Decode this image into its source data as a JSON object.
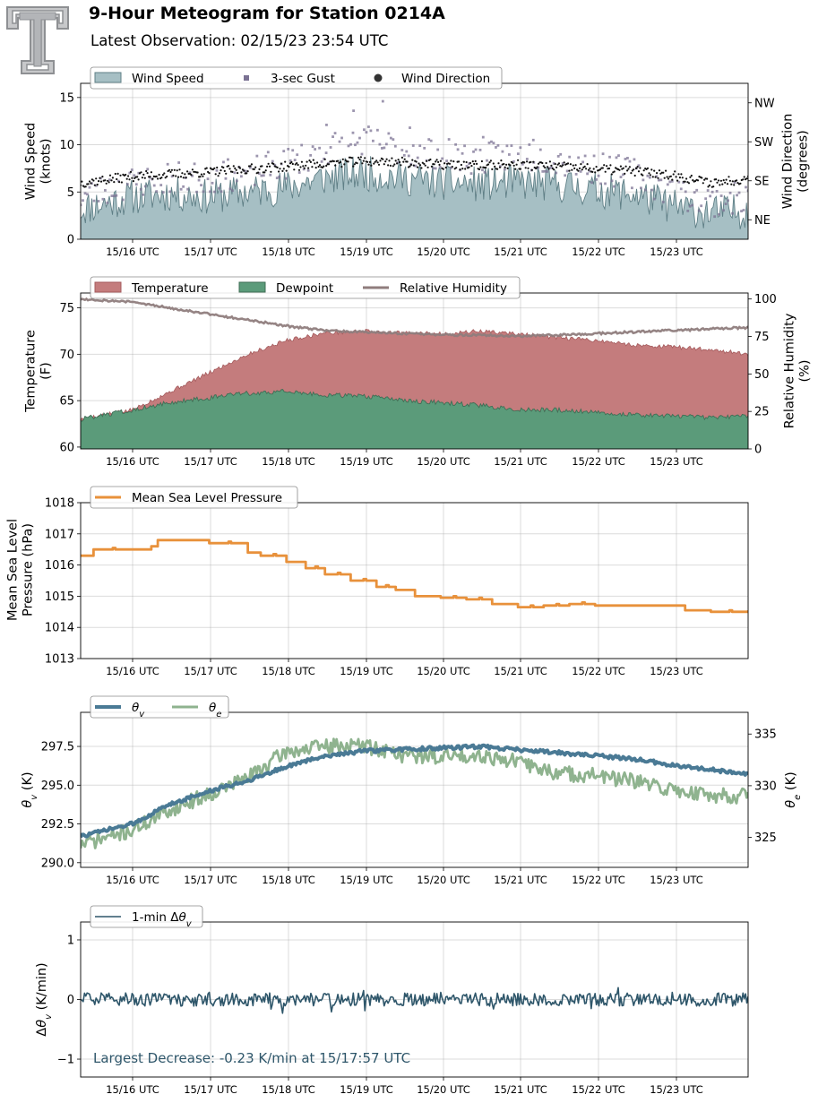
{
  "header": {
    "title": "9-Hour Meteogram for Station 0214A",
    "subtitle": "Latest Observation: 02/15/23 23:54 UTC"
  },
  "logo": {
    "icon": "texas-tech-double-t-logo-icon",
    "color": "#a7a9ac"
  },
  "time_labels": [
    "15/16 UTC",
    "15/17 UTC",
    "15/18 UTC",
    "15/19 UTC",
    "15/20 UTC",
    "15/21 UTC",
    "15/22 UTC",
    "15/23 UTC"
  ],
  "chart_data": [
    {
      "id": "wind",
      "type": "area",
      "x_start": "15/15:20 UTC",
      "x_end": "15/23:59 UTC",
      "ylabel": "Wind Speed\n(knots)",
      "ylabel_right": "Wind Direction\n(degrees)",
      "ylim": [
        0,
        16.5
      ],
      "yticks": [
        0,
        5,
        10,
        15
      ],
      "y2_range_deg": [
        0,
        360
      ],
      "y2_ticks": [
        {
          "label": "NE",
          "deg": 45
        },
        {
          "label": "SE",
          "deg": 135
        },
        {
          "label": "SW",
          "deg": 225
        },
        {
          "label": "NW",
          "deg": 315
        }
      ],
      "legend": [
        "Wind Speed",
        "3-sec Gust",
        "Wind Direction"
      ],
      "colors": {
        "speed_fill": "#a6bfc4",
        "speed_line": "#5f7f86",
        "gust": "#7b7293",
        "direction": "#111111"
      },
      "series": [
        {
          "name": "Wind Speed",
          "x": [
            "15/15:20",
            "15/16:00",
            "15/16:30",
            "15/17:00",
            "15/17:30",
            "15/18:00",
            "15/18:30",
            "15/19:00",
            "15/19:30",
            "15/20:00",
            "15/20:30",
            "15/21:00",
            "15/21:30",
            "15/22:00",
            "15/22:30",
            "15/23:00",
            "15/23:30",
            "15/23:59"
          ],
          "values": [
            3.2,
            4.5,
            4.8,
            4.5,
            5.0,
            5.5,
            6.5,
            7.0,
            6.5,
            6.0,
            5.8,
            6.0,
            5.8,
            5.2,
            4.8,
            3.5,
            2.8,
            3.0
          ]
        },
        {
          "name": "3-sec Gust",
          "x": [
            "15/15:20",
            "15/16:00",
            "15/16:30",
            "15/17:00",
            "15/17:30",
            "15/18:00",
            "15/18:30",
            "15/19:00",
            "15/19:30",
            "15/20:00",
            "15/20:30",
            "15/21:00",
            "15/21:30",
            "15/22:00",
            "15/22:30",
            "15/23:00",
            "15/23:30",
            "15/23:59"
          ],
          "values": [
            4.5,
            6.0,
            6.5,
            6.5,
            7.0,
            8.0,
            9.5,
            10.5,
            9.5,
            9.0,
            8.5,
            9.0,
            8.5,
            7.5,
            7.0,
            5.0,
            4.0,
            4.5
          ]
        },
        {
          "name": "Wind Direction",
          "x": [
            "15/15:20",
            "15/16:00",
            "15/16:30",
            "15/17:00",
            "15/17:30",
            "15/18:00",
            "15/18:30",
            "15/19:00",
            "15/19:30",
            "15/20:00",
            "15/20:30",
            "15/21:00",
            "15/21:30",
            "15/22:00",
            "15/22:30",
            "15/23:00",
            "15/23:30",
            "15/23:59"
          ],
          "values": [
            130,
            145,
            150,
            155,
            162,
            168,
            175,
            180,
            178,
            172,
            170,
            172,
            168,
            162,
            158,
            148,
            130,
            140
          ]
        }
      ]
    },
    {
      "id": "thermo",
      "type": "area",
      "ylabel": "Temperature\n(F)",
      "ylabel_right": "Relative Humidity\n(%)",
      "ylim": [
        59.8,
        76.6
      ],
      "yticks": [
        60,
        65,
        70,
        75
      ],
      "y2lim": [
        0,
        104
      ],
      "y2ticks": [
        0,
        25,
        50,
        75,
        100
      ],
      "legend": [
        "Temperature",
        "Dewpoint",
        "Relative Humidity"
      ],
      "colors": {
        "temperature": "#c47c7d",
        "dewpoint": "#5b9b7a",
        "rh": "#8f7d7d"
      },
      "series": [
        {
          "name": "Temperature",
          "x": [
            "15/15:20",
            "15/16:00",
            "15/16:30",
            "15/17:00",
            "15/17:30",
            "15/18:00",
            "15/18:30",
            "15/19:00",
            "15/19:30",
            "15/20:00",
            "15/20:30",
            "15/21:00",
            "15/21:30",
            "15/22:00",
            "15/22:30",
            "15/23:00",
            "15/23:30",
            "15/23:59"
          ],
          "values": [
            63.0,
            64.0,
            66.0,
            68.0,
            70.0,
            71.5,
            72.3,
            72.5,
            72.3,
            72.2,
            72.5,
            72.2,
            71.8,
            71.5,
            71.0,
            70.8,
            70.5,
            70.0
          ]
        },
        {
          "name": "Dewpoint",
          "x": [
            "15/15:20",
            "15/16:00",
            "15/16:30",
            "15/17:00",
            "15/17:30",
            "15/18:00",
            "15/18:30",
            "15/19:00",
            "15/19:30",
            "15/20:00",
            "15/20:30",
            "15/21:00",
            "15/21:30",
            "15/22:00",
            "15/22:30",
            "15/23:00",
            "15/23:30",
            "15/23:59"
          ],
          "values": [
            63.0,
            64.0,
            64.8,
            65.3,
            65.8,
            66.0,
            65.6,
            65.5,
            65.0,
            64.8,
            64.5,
            64.0,
            64.0,
            63.8,
            63.5,
            63.3,
            63.2,
            63.3
          ]
        },
        {
          "name": "Relative Humidity",
          "x": [
            "15/15:20",
            "15/16:00",
            "15/16:30",
            "15/17:00",
            "15/17:30",
            "15/18:00",
            "15/18:30",
            "15/19:00",
            "15/19:30",
            "15/20:00",
            "15/20:30",
            "15/21:00",
            "15/21:30",
            "15/22:00",
            "15/22:30",
            "15/23:00",
            "15/23:30",
            "15/23:59"
          ],
          "values": [
            100,
            98,
            94,
            90,
            86,
            82,
            79,
            78,
            77,
            76,
            76,
            75,
            76,
            77,
            78,
            79,
            80,
            81
          ]
        }
      ]
    },
    {
      "id": "pressure",
      "type": "line",
      "ylabel": "Mean Sea Level\nPressure (hPa)",
      "ylim": [
        1013,
        1018
      ],
      "yticks": [
        1013,
        1014,
        1015,
        1016,
        1017,
        1018
      ],
      "legend": [
        "Mean Sea Level Pressure"
      ],
      "colors": {
        "pressure": "#e8913b"
      },
      "series": [
        {
          "name": "Mean Sea Level Pressure",
          "x": [
            "15/15:20",
            "15/15:30",
            "15/16:00",
            "15/16:15",
            "15/16:20",
            "15/16:50",
            "15/17:00",
            "15/17:30",
            "15/17:40",
            "15/18:00",
            "15/18:15",
            "15/18:30",
            "15/18:50",
            "15/19:10",
            "15/19:25",
            "15/19:40",
            "15/20:00",
            "15/20:20",
            "15/20:40",
            "15/21:00",
            "15/21:20",
            "15/21:40",
            "15/22:00",
            "15/22:30",
            "15/23:00",
            "15/23:10",
            "15/23:30",
            "15/23:59"
          ],
          "values": [
            1016.3,
            1016.5,
            1016.5,
            1016.6,
            1016.8,
            1016.8,
            1016.7,
            1016.4,
            1016.3,
            1016.1,
            1015.9,
            1015.7,
            1015.5,
            1015.3,
            1015.2,
            1015.0,
            1014.95,
            1014.9,
            1014.75,
            1014.65,
            1014.7,
            1014.75,
            1014.7,
            1014.7,
            1014.7,
            1014.55,
            1014.5,
            1014.55
          ]
        }
      ]
    },
    {
      "id": "theta",
      "type": "line",
      "ylabel": "θv (K)",
      "ylabel_right": "θe (K)",
      "ylim": [
        289.7,
        299.7
      ],
      "yticks": [
        290.0,
        292.5,
        295.0,
        297.5
      ],
      "ytick_labels": [
        "290.0",
        "292.5",
        "295.0",
        "297.5"
      ],
      "y2lim": [
        322.1,
        337.1
      ],
      "y2ticks": [
        325,
        330,
        335
      ],
      "legend": [
        "θv",
        "θe"
      ],
      "colors": {
        "theta_v": "#4a7a95",
        "theta_e": "#8fb38f"
      },
      "series": [
        {
          "name": "θv",
          "x": [
            "15/15:20",
            "15/16:00",
            "15/16:30",
            "15/17:00",
            "15/17:30",
            "15/18:00",
            "15/18:30",
            "15/19:00",
            "15/19:30",
            "15/20:00",
            "15/20:30",
            "15/21:00",
            "15/21:30",
            "15/22:00",
            "15/22:30",
            "15/23:00",
            "15/23:30",
            "15/23:59"
          ],
          "values": [
            291.7,
            292.5,
            293.8,
            294.6,
            295.3,
            296.2,
            296.9,
            297.2,
            297.3,
            297.4,
            297.5,
            297.3,
            297.1,
            296.9,
            296.7,
            296.3,
            296.0,
            295.7
          ]
        },
        {
          "name": "θe",
          "x": [
            "15/15:20",
            "15/16:00",
            "15/16:30",
            "15/17:00",
            "15/17:30",
            "15/18:00",
            "15/18:30",
            "15/19:00",
            "15/19:30",
            "15/20:00",
            "15/20:30",
            "15/21:00",
            "15/21:30",
            "15/22:00",
            "15/22:30",
            "15/23:00",
            "15/23:30",
            "15/23:59"
          ],
          "values": [
            324.3,
            325.7,
            327.7,
            329.2,
            330.8,
            333.3,
            333.8,
            333.9,
            333.0,
            332.8,
            333.0,
            332.3,
            331.2,
            331.0,
            330.4,
            329.6,
            329.1,
            329.0
          ]
        }
      ]
    },
    {
      "id": "dtheta",
      "type": "line",
      "ylabel": "Δθv (K/min)",
      "ylim": [
        -1.3,
        1.3
      ],
      "yticks": [
        -1,
        0,
        1
      ],
      "legend": [
        "1-min Δθv"
      ],
      "colors": {
        "dtheta": "#2e566a",
        "annotation": "#2e566a"
      },
      "annotation": "Largest Decrease: -0.23 K/min at 15/17:57 UTC",
      "series": [
        {
          "name": "1-min Δθv",
          "x": [
            "15/15:20",
            "15/16:00",
            "15/16:30",
            "15/17:00",
            "15/17:30",
            "15/17:57",
            "15/18:30",
            "15/19:00",
            "15/19:30",
            "15/20:00",
            "15/20:30",
            "15/21:00",
            "15/21:30",
            "15/22:00",
            "15/22:30",
            "15/23:00",
            "15/23:30",
            "15/23:59"
          ],
          "values": [
            0.0,
            0.1,
            -0.08,
            0.12,
            -0.1,
            -0.23,
            0.1,
            0.15,
            -0.1,
            0.12,
            -0.1,
            0.1,
            -0.08,
            0.1,
            -0.1,
            0.12,
            -0.1,
            0.05
          ]
        }
      ]
    }
  ]
}
